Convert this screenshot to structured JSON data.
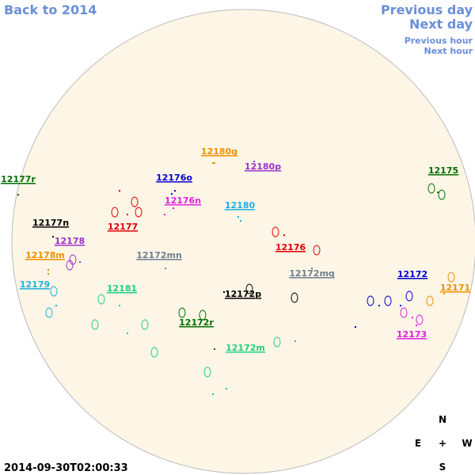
{
  "navigation": {
    "back": "Back to 2014",
    "previous_day": "Previous day",
    "next_day": "Next day",
    "previous_hour": "Previous hour",
    "next_hour": "Next hour"
  },
  "timestamp": "2014-09-30T02:00:33",
  "compass": {
    "north": "N",
    "east": "E",
    "center": "+",
    "west": "W",
    "south": "S"
  },
  "regions": [
    {
      "label": "12180g",
      "color": "#f09000"
    },
    {
      "label": "12180p",
      "color": "#9932cc"
    },
    {
      "label": "12176o",
      "color": "#0000cd"
    },
    {
      "label": "12176n",
      "color": "#e020e0"
    },
    {
      "label": "12180",
      "color": "#20b0e0"
    },
    {
      "label": "12177r",
      "color": "#007000"
    },
    {
      "label": "12175",
      "color": "#007000"
    },
    {
      "label": "12177n",
      "color": "#000000"
    },
    {
      "label": "12177",
      "color": "#dd0000"
    },
    {
      "label": "12178",
      "color": "#9932cc"
    },
    {
      "label": "12176",
      "color": "#dd0000"
    },
    {
      "label": "12178m",
      "color": "#f09000"
    },
    {
      "label": "12172mn",
      "color": "#708090"
    },
    {
      "label": "12172mq",
      "color": "#708090"
    },
    {
      "label": "12172",
      "color": "#0000cd"
    },
    {
      "label": "12179",
      "color": "#20b0e0"
    },
    {
      "label": "12181",
      "color": "#20d080"
    },
    {
      "label": "12171",
      "color": "#f09000"
    },
    {
      "label": "12172p",
      "color": "#000000"
    },
    {
      "label": "12172r",
      "color": "#007000"
    },
    {
      "label": "12172m",
      "color": "#20d080"
    },
    {
      "label": "12173",
      "color": "#e020e0"
    }
  ]
}
